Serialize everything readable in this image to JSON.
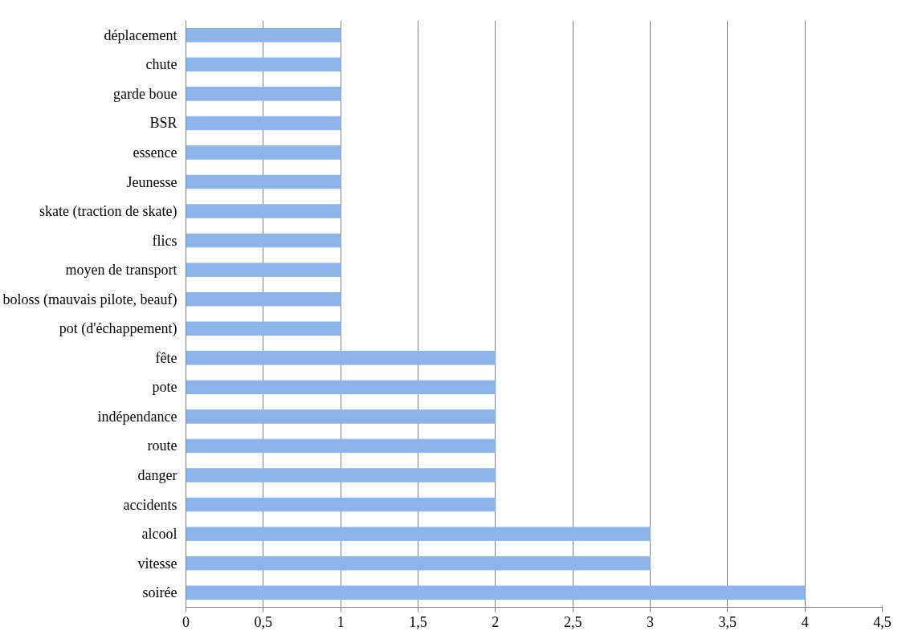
{
  "chart_data": {
    "type": "bar",
    "orientation": "horizontal",
    "categories": [
      "déplacement",
      "chute",
      "garde boue",
      "BSR",
      "essence",
      "Jeunesse",
      "skate (traction de skate)",
      "flics",
      "moyen de transport",
      "boloss (mauvais pilote, beauf)",
      "pot (d'échappement)",
      "fête",
      "pote",
      "indépendance",
      "route",
      "danger",
      "accidents",
      "alcool",
      "vitesse",
      "soirée"
    ],
    "values": [
      1,
      1,
      1,
      1,
      1,
      1,
      1,
      1,
      1,
      1,
      1,
      2,
      2,
      2,
      2,
      2,
      2,
      3,
      3,
      4
    ],
    "color": "#8cb4ea",
    "xlim": [
      0,
      4.5
    ],
    "xticks": [
      0,
      {
        "value": 0.5,
        "label": "0,5"
      },
      1,
      {
        "value": 1.5,
        "label": "1,5"
      },
      2,
      {
        "value": 2.5,
        "label": "2,5"
      },
      3,
      {
        "value": 3.5,
        "label": "3,5"
      },
      4,
      {
        "value": 4.5,
        "label": "4,5"
      }
    ],
    "grid": "x"
  }
}
